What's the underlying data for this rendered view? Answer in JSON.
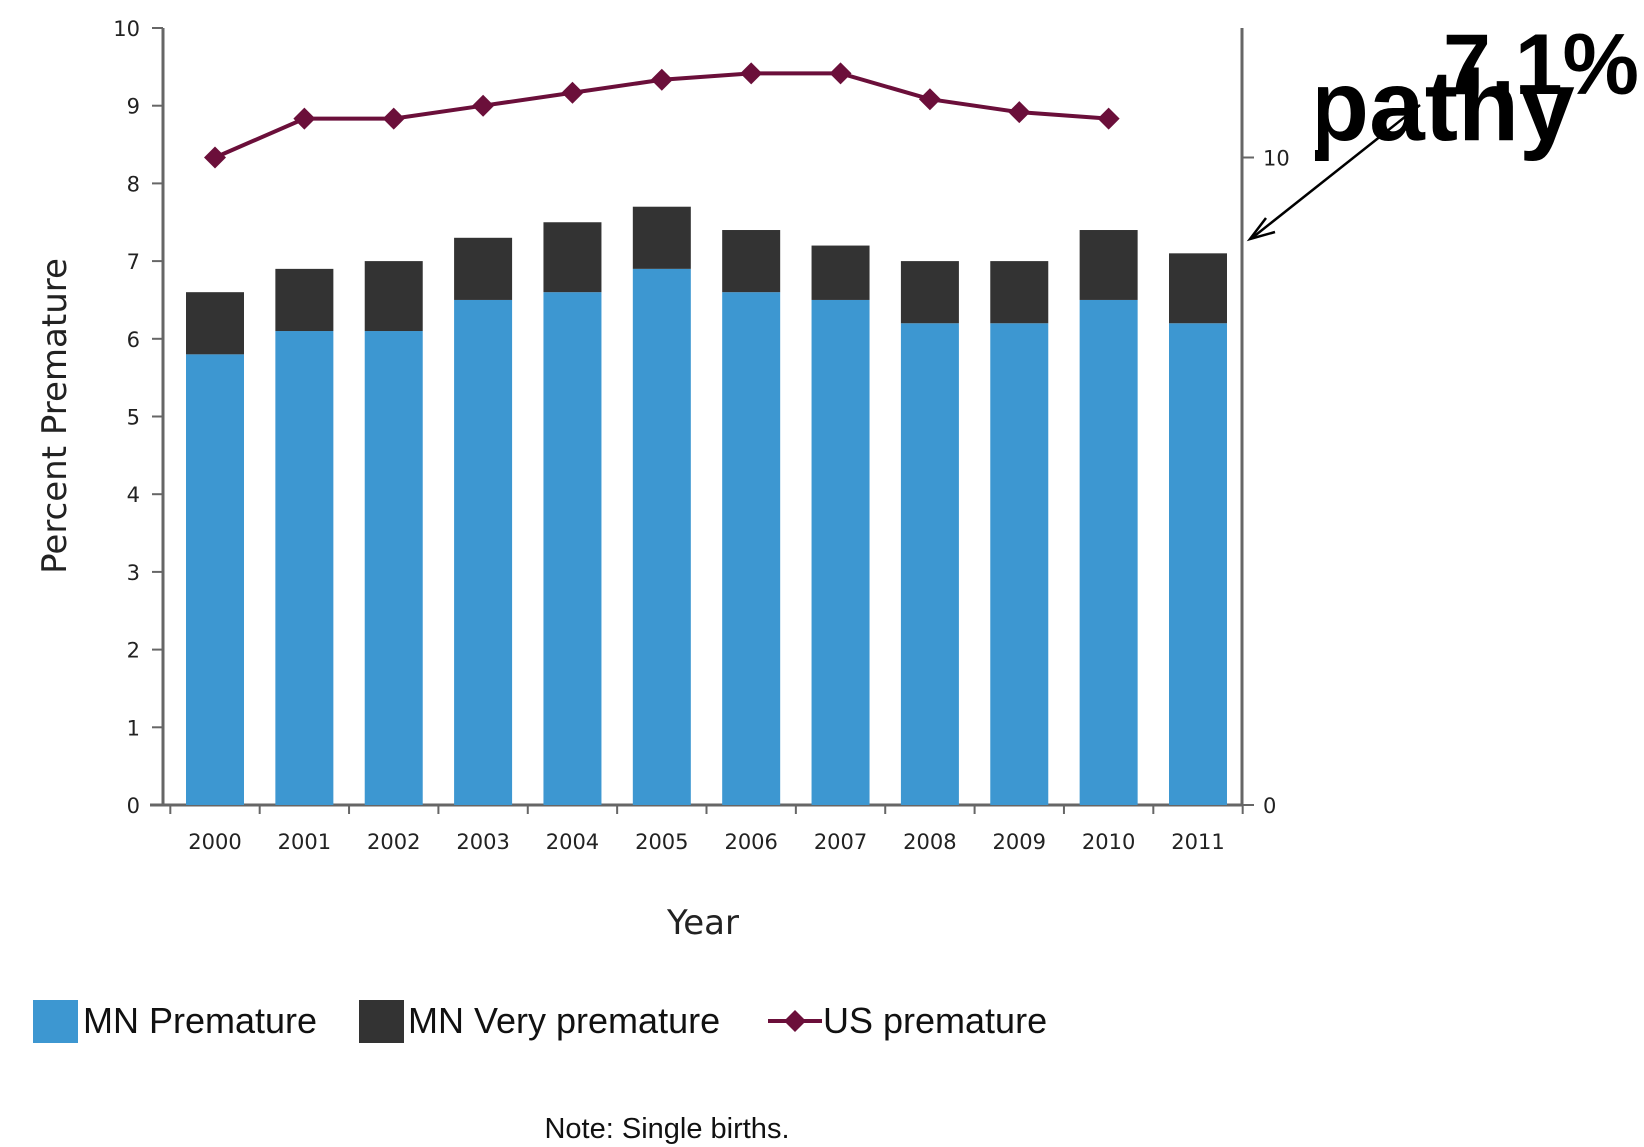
{
  "chart_data": {
    "type": "bar",
    "stacked": true,
    "categories": [
      "2000",
      "2001",
      "2002",
      "2003",
      "2004",
      "2005",
      "2006",
      "2007",
      "2008",
      "2009",
      "2010",
      "2011"
    ],
    "series": [
      {
        "name": "MN Premature",
        "kind": "bar",
        "color": "#3d97d1",
        "values": [
          5.8,
          6.1,
          6.1,
          6.5,
          6.6,
          6.9,
          6.6,
          6.5,
          6.2,
          6.2,
          6.5,
          6.2
        ]
      },
      {
        "name": "MN Very premature",
        "kind": "bar",
        "color": "#333333",
        "values": [
          0.8,
          0.8,
          0.9,
          0.8,
          0.9,
          0.8,
          0.8,
          0.7,
          0.8,
          0.8,
          0.9,
          0.9
        ]
      },
      {
        "name": "US premature",
        "kind": "line",
        "color": "#6b0f3a",
        "axis": "right",
        "values": [
          10.0,
          10.6,
          10.6,
          10.8,
          11.0,
          11.2,
          11.3,
          11.3,
          10.9,
          10.7,
          10.6,
          null
        ]
      }
    ],
    "xlabel": "Year",
    "ylabel": "Percent Premature",
    "ylim": [
      0,
      10
    ],
    "yticks": [
      "0",
      "1",
      "2",
      "3",
      "4",
      "5",
      "6",
      "7",
      "8",
      "9",
      "10"
    ],
    "y2lim": [
      0,
      12
    ],
    "y2ticks": [
      "0",
      "10"
    ],
    "grid": false,
    "legend_position": "bottom-left",
    "note": "Note: Single births."
  },
  "overlay": {
    "label_percent": "7.1%",
    "label_fragment": "pathy"
  }
}
